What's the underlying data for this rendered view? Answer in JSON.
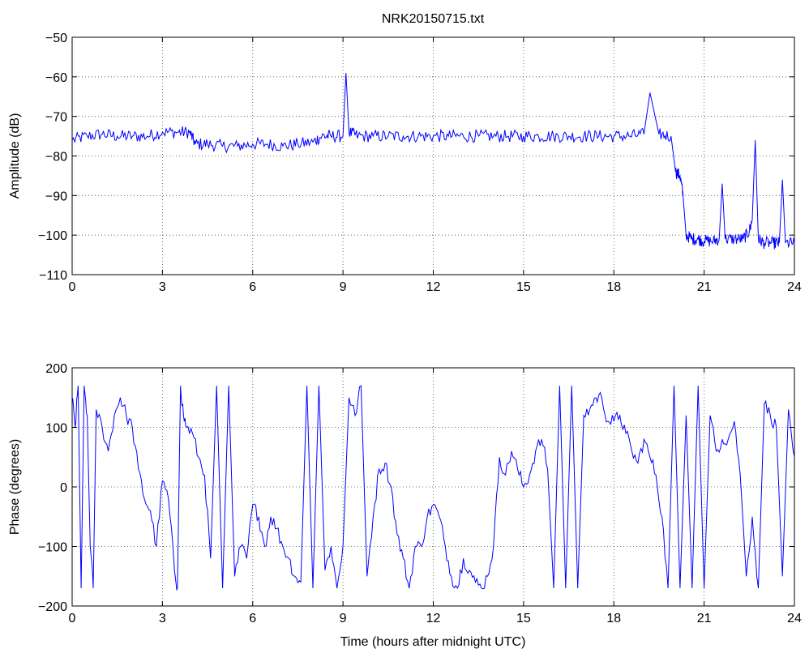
{
  "chart_data": [
    {
      "type": "line",
      "title": "NRK20150715.txt",
      "xlabel": "",
      "ylabel": "Amplitude (dB)",
      "xlim": [
        0,
        24
      ],
      "ylim": [
        -110,
        -50
      ],
      "xticks": [
        0,
        3,
        6,
        9,
        12,
        15,
        18,
        21,
        24
      ],
      "yticks": [
        -110,
        -100,
        -90,
        -80,
        -70,
        -60,
        -50
      ],
      "grid": true,
      "color": "#0000ff",
      "series": [
        {
          "x": [
            0,
            0.5,
            1,
            1.5,
            2,
            2.5,
            3,
            3.5,
            3.9,
            4.1,
            4.5,
            5,
            5.5,
            6,
            6.5,
            7,
            7.5,
            8,
            8.3,
            8.6,
            9,
            9.1,
            9.2,
            9.5,
            10,
            10.5,
            11,
            11.5,
            12,
            12.5,
            13,
            13.5,
            14,
            14.5,
            15,
            15.5,
            16,
            16.5,
            17,
            17.5,
            18,
            18.5,
            19,
            19.2,
            19.5,
            19.9,
            20.05,
            20.2,
            20.3,
            20.4,
            20.6,
            20.8,
            21,
            21.3,
            21.5,
            21.6,
            21.7,
            22,
            22.3,
            22.5,
            22.6,
            22.7,
            22.8,
            23,
            23.3,
            23.5,
            23.6,
            23.7,
            24
          ],
          "y": [
            -76,
            -75,
            -74.5,
            -75,
            -75,
            -75,
            -74,
            -74,
            -74,
            -77,
            -77,
            -77.5,
            -77.5,
            -77,
            -77,
            -77.5,
            -77,
            -76.5,
            -75,
            -75,
            -75,
            -59,
            -74,
            -75,
            -75,
            -75,
            -75,
            -75,
            -75,
            -75,
            -75,
            -75,
            -75,
            -75,
            -75,
            -75,
            -75,
            -75,
            -75,
            -75,
            -75,
            -75,
            -74.5,
            -64,
            -74.5,
            -75,
            -84,
            -85,
            -90,
            -100,
            -101,
            -101,
            -101.5,
            -101.5,
            -101,
            -87,
            -101,
            -101,
            -101,
            -99,
            -96,
            -76,
            -101,
            -102,
            -102,
            -102,
            -86,
            -102,
            -102
          ]
        }
      ]
    },
    {
      "type": "line",
      "title": "",
      "xlabel": "Time (hours after midnight UTC)",
      "ylabel": "Phase (degrees)",
      "xlim": [
        0,
        24
      ],
      "ylim": [
        -200,
        200
      ],
      "xticks": [
        0,
        3,
        6,
        9,
        12,
        15,
        18,
        21,
        24
      ],
      "yticks": [
        -200,
        -100,
        0,
        100,
        200
      ],
      "grid": true,
      "color": "#0000ff",
      "series": [
        {
          "x": [
            0,
            0.1,
            0.2,
            0.3,
            0.4,
            0.5,
            0.6,
            0.7,
            0.8,
            1.0,
            1.2,
            1.4,
            1.6,
            1.8,
            2.0,
            2.2,
            2.4,
            2.6,
            2.8,
            3.0,
            3.2,
            3.4,
            3.5,
            3.6,
            3.7,
            3.8,
            4.0,
            4.2,
            4.4,
            4.6,
            4.8,
            5.0,
            5.2,
            5.4,
            5.6,
            5.8,
            6.0,
            6.2,
            6.4,
            6.6,
            6.8,
            7.0,
            7.2,
            7.4,
            7.6,
            7.8,
            8.0,
            8.2,
            8.4,
            8.6,
            8.8,
            9.0,
            9.2,
            9.4,
            9.6,
            9.8,
            10.0,
            10.2,
            10.4,
            10.6,
            10.8,
            11.0,
            11.2,
            11.4,
            11.6,
            11.8,
            12.0,
            12.2,
            12.4,
            12.6,
            12.8,
            13.0,
            13.2,
            13.4,
            13.6,
            13.8,
            14.0,
            14.2,
            14.4,
            14.6,
            14.8,
            15.0,
            15.2,
            15.4,
            15.6,
            15.8,
            16.0,
            16.2,
            16.4,
            16.6,
            16.8,
            17.0,
            17.2,
            17.4,
            17.6,
            17.8,
            18.0,
            18.2,
            18.4,
            18.6,
            18.8,
            19.0,
            19.2,
            19.4,
            19.6,
            19.8,
            20.0,
            20.2,
            20.4,
            20.6,
            20.8,
            21.0,
            21.2,
            21.4,
            21.6,
            21.8,
            22.0,
            22.2,
            22.4,
            22.6,
            22.8,
            23.0,
            23.2,
            23.4,
            23.6,
            23.8,
            24.0
          ],
          "y": [
            150,
            100,
            170,
            -170,
            170,
            120,
            -100,
            -170,
            130,
            100,
            60,
            120,
            150,
            120,
            100,
            30,
            -20,
            -40,
            -100,
            10,
            -20,
            -140,
            -170,
            170,
            120,
            100,
            90,
            50,
            20,
            -120,
            170,
            -170,
            170,
            -150,
            -100,
            -120,
            -30,
            -50,
            -100,
            -50,
            -70,
            -100,
            -120,
            -150,
            -160,
            170,
            -170,
            170,
            -140,
            -100,
            -170,
            -100,
            150,
            120,
            170,
            -150,
            -50,
            30,
            40,
            0,
            -80,
            -120,
            -170,
            -100,
            -100,
            -50,
            -30,
            -50,
            -100,
            -150,
            -170,
            -120,
            -140,
            -160,
            -170,
            -150,
            -100,
            50,
            20,
            60,
            30,
            0,
            20,
            60,
            80,
            30,
            -170,
            170,
            -170,
            170,
            -170,
            120,
            130,
            150,
            150,
            110,
            110,
            120,
            90,
            60,
            40,
            80,
            50,
            20,
            -50,
            -170,
            170,
            -170,
            120,
            -170,
            170,
            -170,
            120,
            60,
            80,
            80,
            110,
            20,
            -150,
            -50,
            -170,
            140,
            120,
            100,
            -150,
            130,
            50
          ]
        }
      ]
    }
  ]
}
